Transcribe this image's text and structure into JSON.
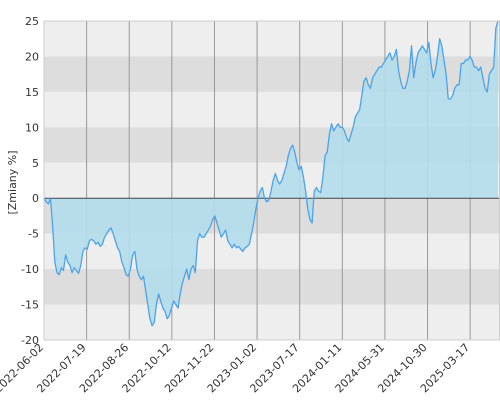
{
  "chart_data": {
    "type": "area",
    "title": "",
    "xlabel": "",
    "ylabel": "[Zmiany %]",
    "ylim": [
      -20,
      25
    ],
    "yticks": [
      25,
      20,
      15,
      10,
      5,
      0,
      -5,
      -10,
      -15,
      -20
    ],
    "grid": true,
    "legend": "none",
    "x_tick_labels": [
      "2022-06-02",
      "2022-07-19",
      "2022-08-26",
      "2022-10-12",
      "2022-11-22",
      "2023-01-02",
      "2023-07-17",
      "2024-01-11",
      "2024-05-31",
      "2024-10-30",
      "2025-03-17"
    ],
    "series": [
      {
        "values": [
          0,
          -0.5,
          -0.8,
          0,
          -4,
          -9,
          -10.5,
          -10.8,
          -9.8,
          -10.2,
          -8,
          -9,
          -9.5,
          -10.5,
          -9.8,
          -10.2,
          -10.6,
          -9.5,
          -7.5,
          -7,
          -7.2,
          -6,
          -5.8,
          -6,
          -6.5,
          -6.2,
          -6.8,
          -6.5,
          -5.5,
          -5,
          -4.5,
          -4.2,
          -5,
          -6,
          -7,
          -7.5,
          -9,
          -9.8,
          -10.8,
          -11,
          -10,
          -8,
          -7.5,
          -10,
          -11,
          -11.5,
          -11,
          -13,
          -15,
          -17,
          -18,
          -17.5,
          -15,
          -13.5,
          -14.5,
          -15.5,
          -16,
          -17,
          -16.5,
          -15.5,
          -14.5,
          -15,
          -15.5,
          -13.5,
          -12,
          -11,
          -10,
          -11.5,
          -10,
          -9.5,
          -10.5,
          -6,
          -5,
          -5.5,
          -5.5,
          -5,
          -4.5,
          -4,
          -3,
          -2.5,
          -3.5,
          -4.5,
          -5.5,
          -5,
          -4.5,
          -6,
          -6.5,
          -7,
          -6.5,
          -7,
          -6.8,
          -7.2,
          -7.5,
          -7,
          -6.8,
          -6.5,
          -5,
          -3.5,
          -1.5,
          0,
          1,
          1.5,
          0,
          -0.5,
          -0.3,
          1,
          2.5,
          3.5,
          2.5,
          2,
          2.5,
          3.5,
          4.5,
          6,
          7,
          7.5,
          6.5,
          5,
          4,
          4.5,
          3,
          1,
          -1.5,
          -3,
          -3.5,
          1,
          1.5,
          1,
          0.8,
          3,
          6,
          6.5,
          9,
          10.5,
          9.5,
          10,
          10.5,
          10,
          10,
          9.5,
          8.5,
          8,
          9,
          10,
          11.5,
          12,
          12.5,
          14.5,
          16.5,
          17,
          16,
          15.5,
          17,
          17.5,
          18,
          18.5,
          18.5,
          19,
          19.5,
          20,
          20.5,
          19.5,
          20,
          21,
          18,
          16.5,
          15.5,
          15.5,
          16.5,
          18,
          21.5,
          17,
          19,
          20.5,
          21,
          21.5,
          21,
          20.5,
          22,
          19,
          17,
          18,
          20,
          22.5,
          21.5,
          19.5,
          17.5,
          14,
          14,
          14.5,
          15.5,
          16,
          16,
          19,
          19,
          19.5,
          19.5,
          20,
          19.5,
          18.5,
          18.5,
          18,
          18.5,
          17,
          15.5,
          15,
          17.5,
          18,
          18.5,
          24,
          25
        ]
      }
    ],
    "colors": {
      "band_light": "#eeeeee",
      "band_dark": "#dddddd",
      "area_fill": "#b3dbeb",
      "line": "#4da3e8",
      "vgrid": "#999999",
      "zero_line": "#444444",
      "plot_border": "#cccccc"
    }
  }
}
